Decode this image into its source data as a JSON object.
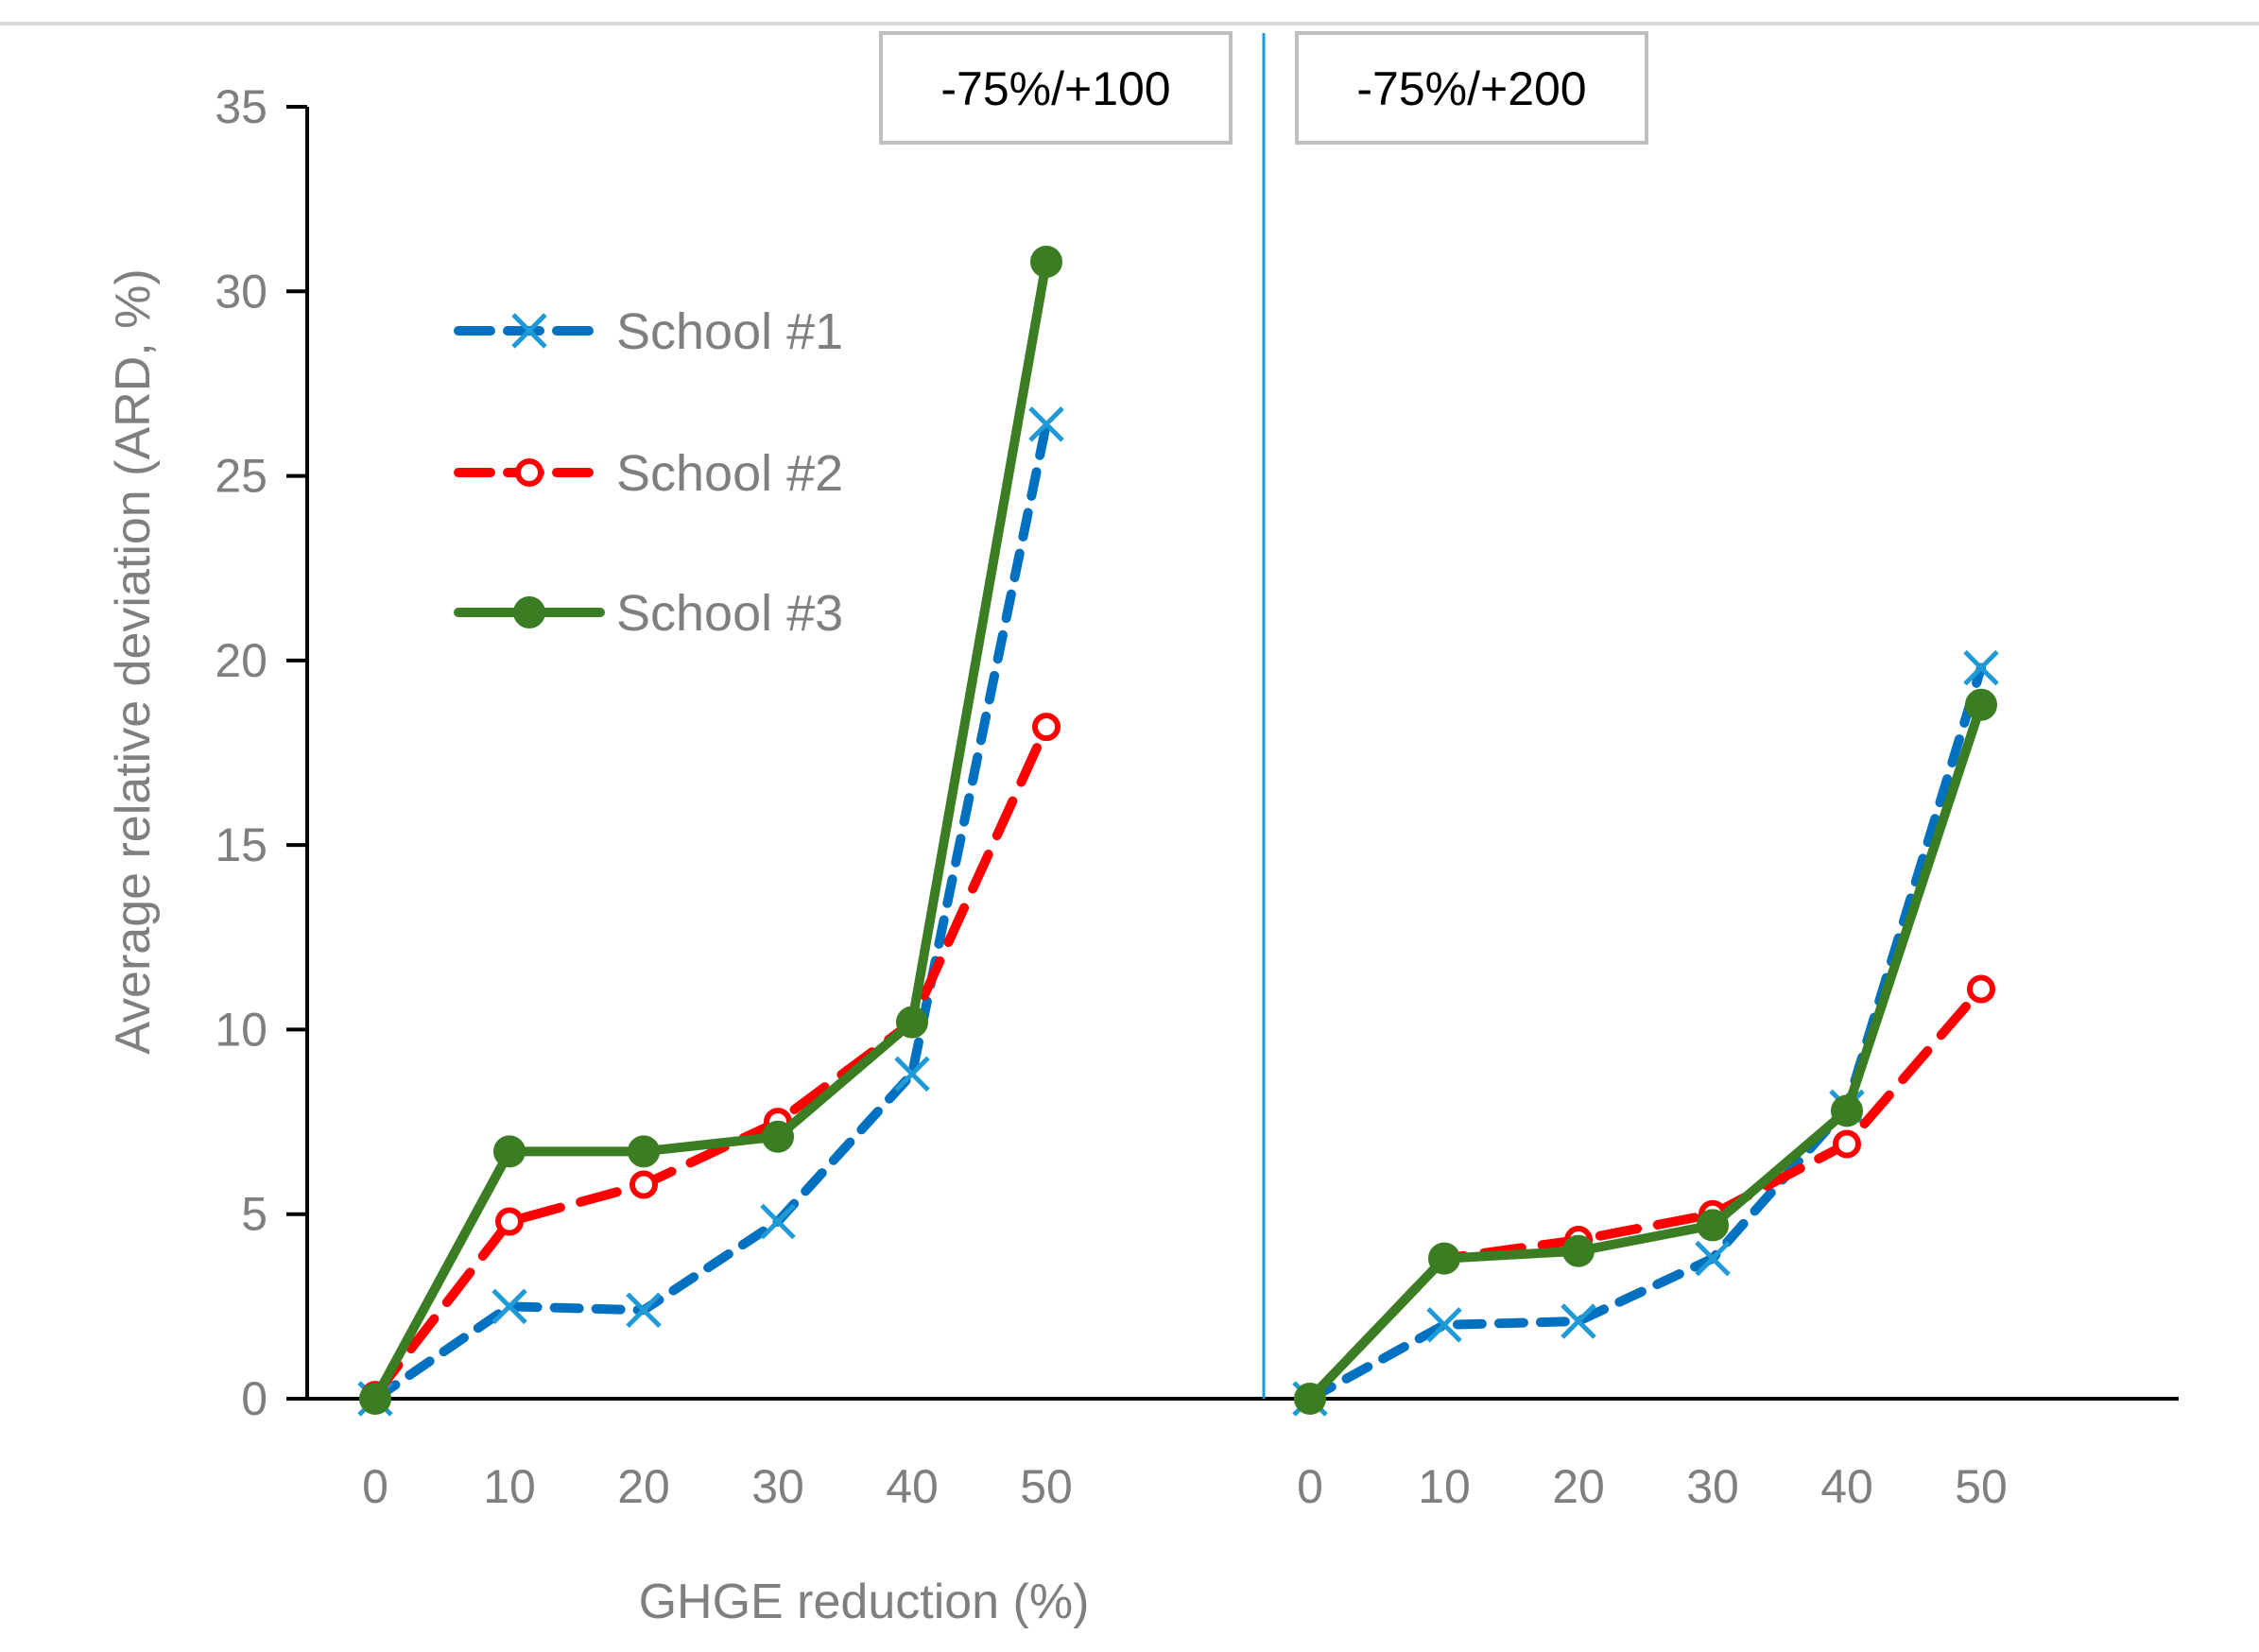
{
  "chart_data": {
    "type": "line",
    "xlabel": "GHGE reduction (%)",
    "ylabel": "Average relative deviation (ARD, %)",
    "ylim": [
      0,
      35
    ],
    "yticks": [
      "0",
      "5",
      "10",
      "15",
      "20",
      "25",
      "30",
      "35"
    ],
    "grid": false,
    "legend_position": "top-left",
    "colors": {
      "school1": "#0070c0",
      "school1_marker": "#1f9ad6",
      "school2": "#ff0000",
      "school3": "#3a7d22",
      "axis": "#000000",
      "divider": "#1f9ad6"
    },
    "panels": [
      {
        "label": "-75%/+100",
        "categories": [
          "0",
          "10",
          "20",
          "30",
          "40",
          "50"
        ],
        "series": [
          {
            "name": "School #1",
            "values": [
              0,
              2.5,
              2.4,
              4.8,
              8.8,
              26.4
            ]
          },
          {
            "name": "School #2",
            "values": [
              0.1,
              4.8,
              5.8,
              7.5,
              10.2,
              18.2
            ]
          },
          {
            "name": "School #3",
            "values": [
              0,
              6.7,
              6.7,
              7.1,
              10.2,
              30.8
            ]
          }
        ]
      },
      {
        "label": "-75%/+200",
        "categories": [
          "0",
          "10",
          "20",
          "30",
          "40",
          "50"
        ],
        "series": [
          {
            "name": "School #1",
            "values": [
              0,
              2.0,
              2.1,
              3.8,
              7.9,
              19.8
            ]
          },
          {
            "name": "School #2",
            "values": [
              0,
              3.8,
              4.3,
              5.0,
              6.9,
              11.1
            ]
          },
          {
            "name": "School #3",
            "values": [
              0,
              3.8,
              4.0,
              4.7,
              7.8,
              18.8
            ]
          }
        ]
      }
    ],
    "legend": [
      {
        "name": "School #1",
        "marker": "x",
        "dash": true
      },
      {
        "name": "School #2",
        "marker": "circle-open",
        "dash": true
      },
      {
        "name": "School #3",
        "marker": "circle",
        "dash": false
      }
    ]
  }
}
